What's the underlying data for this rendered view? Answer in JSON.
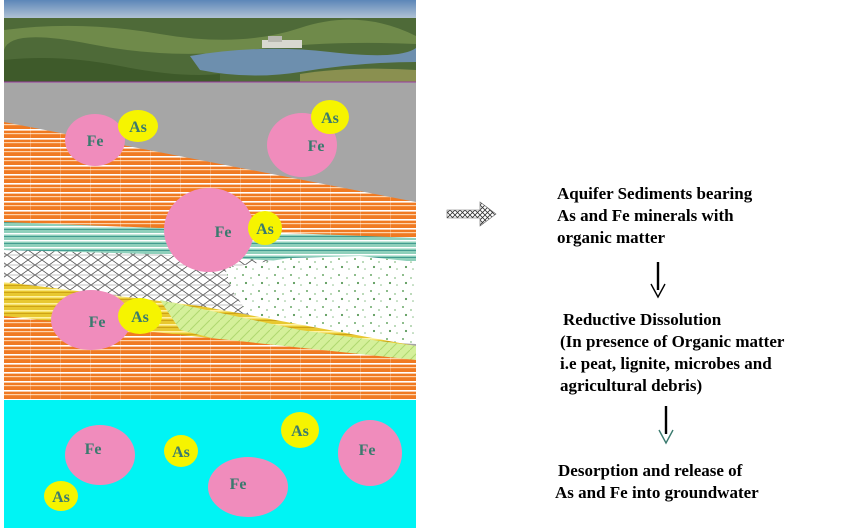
{
  "particles": {
    "fe_label": "Fe",
    "as_label": "As",
    "fe_color": "#f08cbc",
    "as_color": "#f6f400",
    "text_color": "#3a7a6e"
  },
  "layers": {
    "sky_photo": "landscape-photo",
    "top_layer_color": "#a6a6a6",
    "orange_layer_color": "#f07a22",
    "teal_layer_color": "#7fc8b2",
    "groundwater_color": "#00f4f4"
  },
  "steps": [
    {
      "lines": [
        "Aquifer Sediments bearing",
        "As and Fe minerals with",
        "organic matter"
      ]
    },
    {
      "lines": [
        "Reductive Dissolution",
        "(In presence of Organic matter",
        "i.e peat, lignite, microbes and",
        "agricultural debris)"
      ]
    },
    {
      "lines": [
        "Desorption and release of",
        "As and Fe into groundwater"
      ]
    }
  ],
  "icons": {
    "pointer": "hatched-right-arrow-icon",
    "down1": "down-arrow-icon",
    "down2": "down-arrow-icon"
  }
}
